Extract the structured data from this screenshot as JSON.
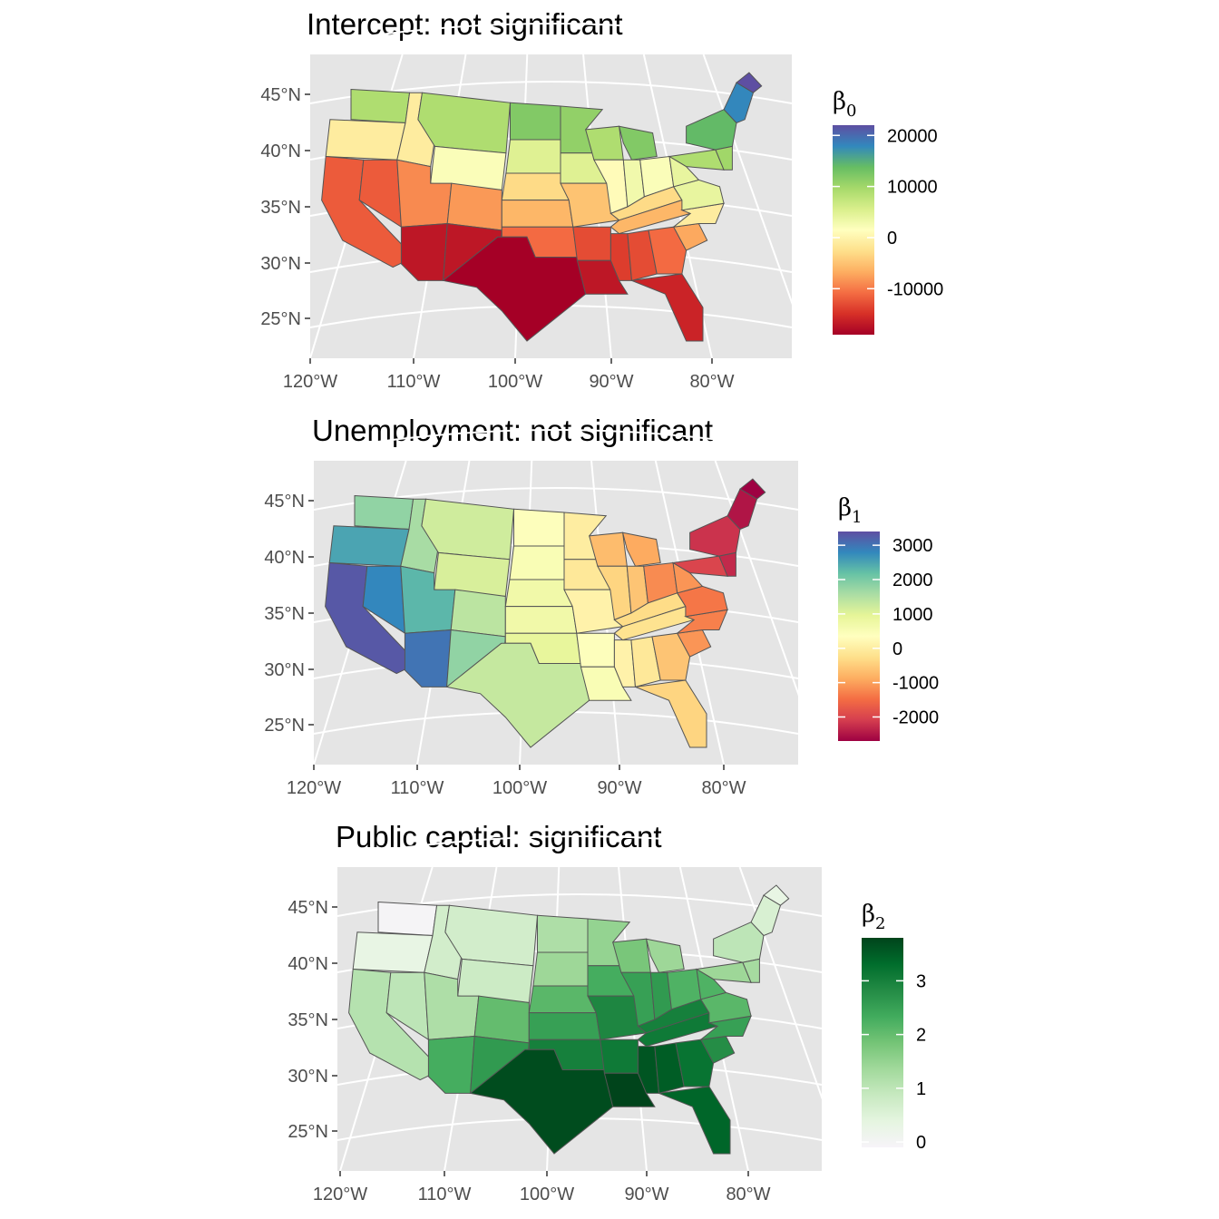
{
  "axes": {
    "lat_labels": [
      "45°N",
      "40°N",
      "35°N",
      "30°N",
      "25°N"
    ],
    "lat_values": [
      45,
      40,
      35,
      30,
      25
    ],
    "lon_labels": [
      "120°W",
      "110°W",
      "100°W",
      "90°W",
      "80°W"
    ],
    "lon_values": [
      -120,
      -110,
      -100,
      -90,
      -80
    ]
  },
  "colors": {
    "panel_bg": "#e5e5e5",
    "graticule": "#ffffff",
    "state_border": "#555555"
  },
  "panels": [
    {
      "title": "Intercept: not significant",
      "legend_symbol": "β",
      "legend_sub": "0",
      "legend_ticks": [
        "20000",
        "10000",
        "0",
        "-10000"
      ],
      "legend_tick_values": [
        20000,
        10000,
        0,
        -10000
      ],
      "legend_range": [
        -19000,
        22000
      ],
      "palette": [
        "#a50026",
        "#d73027",
        "#f46d43",
        "#fdae61",
        "#fee08b",
        "#ffffbf",
        "#d9ef8b",
        "#a6d96a",
        "#66bd63",
        "#3288bd",
        "#5e4fa2"
      ]
    },
    {
      "title": "Unemployment: not significant",
      "legend_symbol": "β",
      "legend_sub": "1",
      "legend_ticks": [
        "3000",
        "2000",
        "1000",
        "0",
        "-1000",
        "-2000"
      ],
      "legend_tick_values": [
        3000,
        2000,
        1000,
        0,
        -1000,
        -2000
      ],
      "legend_range": [
        -2700,
        3400
      ],
      "palette": [
        "#9e0142",
        "#d53e4f",
        "#f46d43",
        "#fdae61",
        "#fee08b",
        "#ffffbf",
        "#e6f598",
        "#abdda4",
        "#66c2a5",
        "#3288bd",
        "#5e4fa2"
      ]
    },
    {
      "title": "Public captial: significant",
      "legend_symbol": "β",
      "legend_sub": "2",
      "legend_ticks": [
        "3",
        "2",
        "1",
        "0"
      ],
      "legend_tick_values": [
        3,
        2,
        1,
        0
      ],
      "legend_range": [
        -0.1,
        3.8
      ],
      "palette": [
        "#f7f4f9",
        "#e5f5e0",
        "#c7e9c0",
        "#a1d99b",
        "#74c476",
        "#41ab5d",
        "#238b45",
        "#006d2c",
        "#00441b"
      ]
    }
  ]
}
